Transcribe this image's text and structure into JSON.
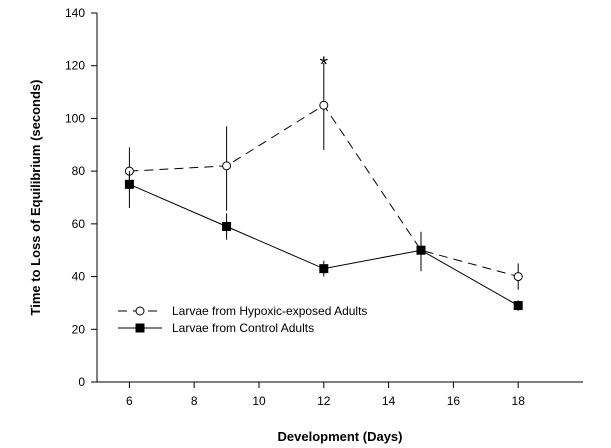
{
  "chart_data": {
    "type": "line",
    "title": "",
    "xlabel": "Development (Days)",
    "ylabel": "Time to Loss of Equilibrium (seconds)",
    "xlim": [
      5,
      20
    ],
    "ylim": [
      0,
      140
    ],
    "xticks": [
      6,
      8,
      10,
      12,
      14,
      16,
      18
    ],
    "yticks": [
      0,
      20,
      40,
      60,
      80,
      100,
      120,
      140
    ],
    "grid": false,
    "legend_position": "bottom-left",
    "series": [
      {
        "name": "Larvae from Hypoxic-exposed Adults",
        "marker": "open-circle",
        "line": "dashed",
        "color": "#000000",
        "x": [
          6,
          9,
          12,
          15,
          18
        ],
        "y": [
          80,
          82,
          105,
          50,
          40
        ],
        "err_low": [
          74,
          65,
          88,
          43,
          35
        ],
        "err_high": [
          89,
          97,
          121,
          55,
          45
        ]
      },
      {
        "name": "Larvae from Control Adults",
        "marker": "filled-square",
        "line": "solid",
        "color": "#000000",
        "x": [
          6,
          9,
          12,
          15,
          18
        ],
        "y": [
          75,
          59,
          43,
          50,
          29
        ],
        "err_low": [
          66,
          54,
          40,
          42,
          27
        ],
        "err_high": [
          80,
          64,
          46,
          57,
          31
        ]
      }
    ],
    "annotations": [
      {
        "text": "*",
        "x": 12,
        "y": 123
      }
    ]
  }
}
